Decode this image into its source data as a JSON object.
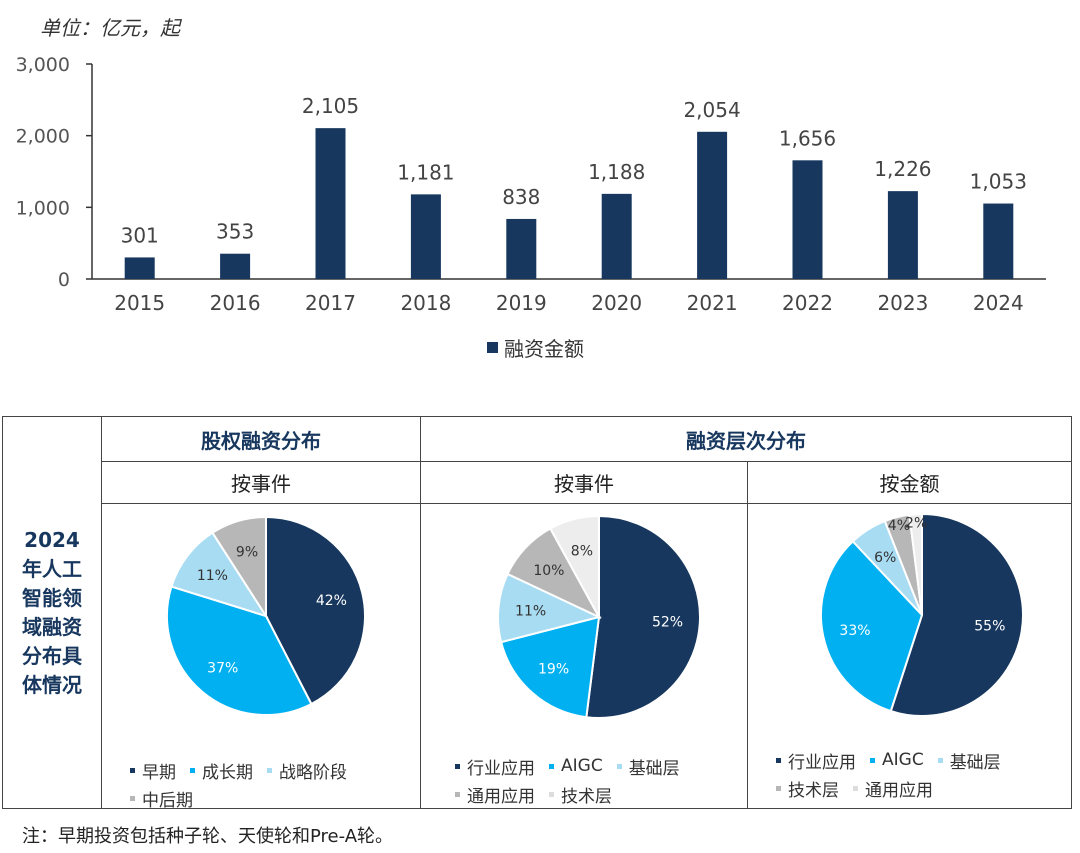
{
  "unit_label": "单位：亿元，起",
  "chart_data": [
    {
      "type": "bar",
      "categories": [
        "2015",
        "2016",
        "2017",
        "2018",
        "2019",
        "2020",
        "2021",
        "2022",
        "2023",
        "2024"
      ],
      "series": [
        {
          "name": "融资金额",
          "values": [
            301,
            353,
            2105,
            1181,
            838,
            1188,
            2054,
            1656,
            1226,
            1053
          ]
        }
      ],
      "value_labels": [
        "301",
        "353",
        "2,105",
        "1,181",
        "838",
        "1,188",
        "2,054",
        "1,656",
        "1,226",
        "1,053"
      ],
      "yticks": [
        "0",
        "1,000",
        "2,000",
        "3,000"
      ],
      "ylim": [
        0,
        3000
      ],
      "color": "#17375e"
    },
    {
      "type": "pie",
      "title": "按事件",
      "labels": [
        "早期",
        "成长期",
        "战略阶段",
        "中后期"
      ],
      "values": [
        42,
        37,
        11,
        9
      ],
      "value_labels": [
        "42%",
        "37%",
        "11%",
        "9%"
      ],
      "colors": [
        "#17375e",
        "#00b0f0",
        "#a8dcf3",
        "#b7b7b7"
      ]
    },
    {
      "type": "pie",
      "title": "按事件",
      "labels": [
        "行业应用",
        "AIGC",
        "基础层",
        "通用应用",
        "技术层"
      ],
      "values": [
        52,
        19,
        11,
        10,
        8
      ],
      "value_labels": [
        "52%",
        "19%",
        "11%",
        "10%",
        "8%"
      ],
      "colors": [
        "#17375e",
        "#00b0f0",
        "#a8dcf3",
        "#b7b7b7",
        "#ededed"
      ]
    },
    {
      "type": "pie",
      "title": "按金额",
      "labels": [
        "行业应用",
        "AIGC",
        "基础层",
        "技术层",
        "通用应用"
      ],
      "values": [
        55,
        33,
        6,
        4,
        2
      ],
      "value_labels": [
        "55%",
        "33%",
        "6%",
        "4%",
        "2%"
      ],
      "colors": [
        "#17375e",
        "#00b0f0",
        "#a8dcf3",
        "#b7b7b7",
        "#ededed"
      ]
    }
  ],
  "table": {
    "row_header": [
      "2024",
      "年人工",
      "智能领",
      "域融资",
      "分布具",
      "体情况"
    ],
    "section1": "股权融资分布",
    "section2": "融资层次分布",
    "sub1": "按事件",
    "sub2": "按事件",
    "sub3": "按金额"
  },
  "note": "注：早期投资包括种子轮、天使轮和Pre-A轮。"
}
